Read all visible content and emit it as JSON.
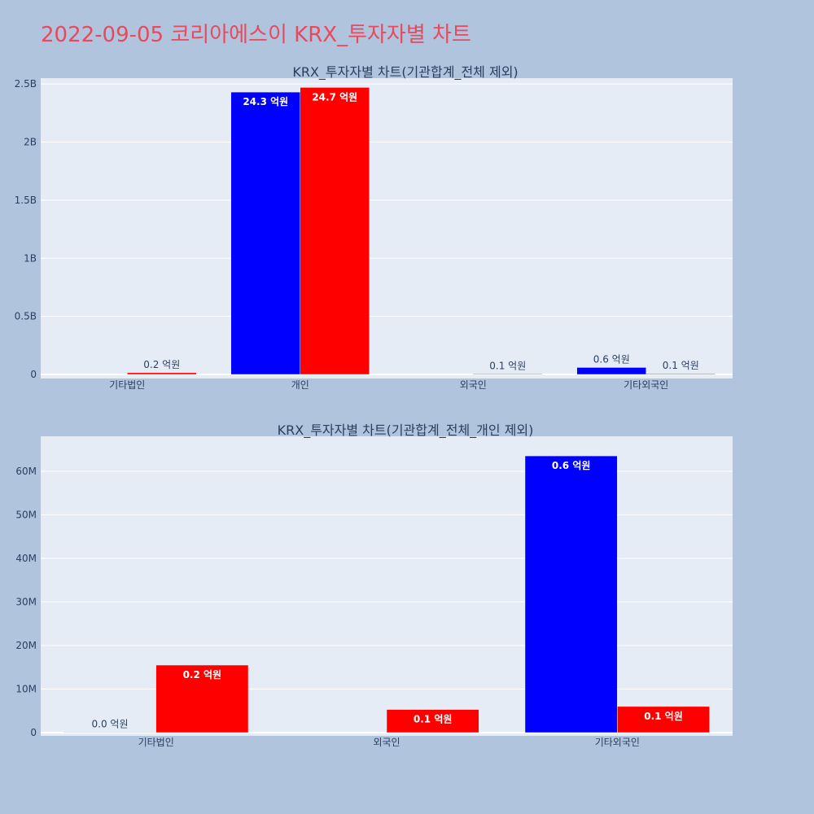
{
  "title": "2022-09-05 코리아에스이 KRX_투자자별 차트",
  "colors": {
    "series_a": "#0000ff",
    "series_b": "#ff0000",
    "plot_bg": "#e5ecf6",
    "page_bg": "#b0c4de",
    "title": "#e8495c"
  },
  "chart_data": [
    {
      "type": "bar",
      "title": "KRX_투자자별 차트(기관합계_전체 제외)",
      "categories": [
        "기타법인",
        "개인",
        "외국인",
        "기타외국인"
      ],
      "ylim": [
        0,
        2.55
      ],
      "yticks": [
        0,
        0.5,
        1,
        1.5,
        2,
        2.5
      ],
      "ytick_labels": [
        "0",
        "0.5B",
        "1B",
        "1.5B",
        "2B",
        "2.5B"
      ],
      "grid": true,
      "series": [
        {
          "color": "#0000ff",
          "values": [
            0,
            2.43,
            0,
            0.06
          ],
          "labels": [
            "",
            "24.3 억원",
            "",
            "0.6 억원"
          ]
        },
        {
          "color": "#ff0000",
          "values": [
            0.015,
            2.47,
            0.005,
            0.006
          ],
          "labels": [
            "0.2 억원",
            "24.7 억원",
            "0.1 억원",
            "0.1 억원"
          ]
        }
      ]
    },
    {
      "type": "bar",
      "title": "KRX_투자자별 차트(기관합계_전체_개인 제외)",
      "categories": [
        "기타법인",
        "외국인",
        "기타외국인"
      ],
      "ylim": [
        0,
        68
      ],
      "yticks": [
        0,
        10,
        20,
        30,
        40,
        50,
        60
      ],
      "ytick_labels": [
        "0",
        "10M",
        "20M",
        "30M",
        "40M",
        "50M",
        "60M"
      ],
      "grid": true,
      "series": [
        {
          "color": "#0000ff",
          "values": [
            0.1,
            0,
            63.5
          ],
          "labels": [
            "0.0 억원",
            "",
            "0.6 억원"
          ]
        },
        {
          "color": "#ff0000",
          "values": [
            15.5,
            5.3,
            6.0
          ],
          "labels": [
            "0.2 억원",
            "0.1 억원",
            "0.1 억원"
          ]
        }
      ]
    }
  ]
}
